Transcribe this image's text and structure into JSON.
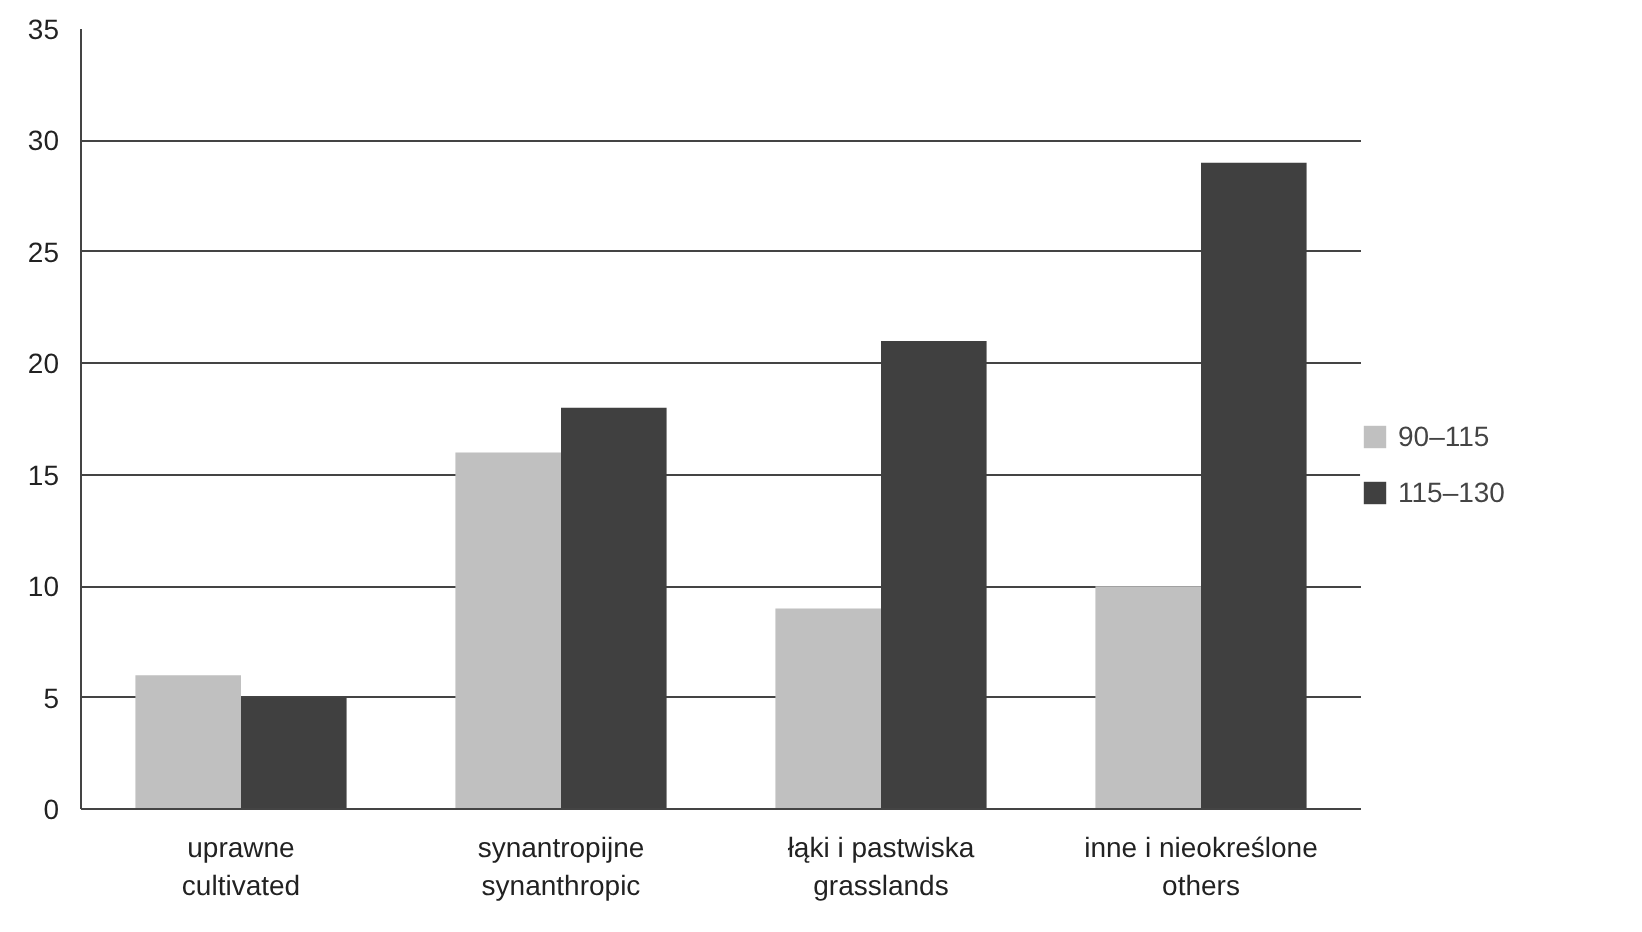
{
  "chart_data": {
    "type": "bar",
    "categories": [
      "uprawne\ncultivated",
      "synantropijne\nsynanthropic",
      "łąki i pastwiska\ngrasslands",
      "inne i nieokreślone\nothers"
    ],
    "series": [
      {
        "name": "90–115",
        "color": "#c0c0c0",
        "values": [
          6,
          16,
          9,
          10
        ]
      },
      {
        "name": "115–130",
        "color": "#404040",
        "values": [
          5,
          18,
          21,
          29
        ]
      }
    ],
    "ylim": [
      0,
      35
    ],
    "yticks": [
      0,
      5,
      10,
      15,
      20,
      25,
      30,
      35
    ],
    "grid": "y",
    "legend": "right"
  }
}
